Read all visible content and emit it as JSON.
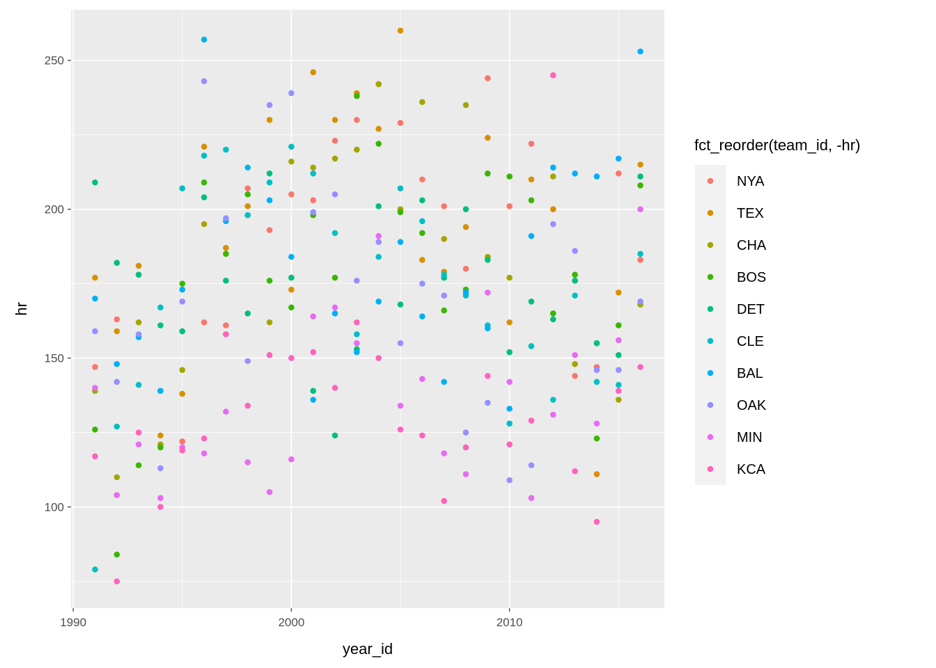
{
  "chart_data": {
    "type": "scatter",
    "xlabel": "year_id",
    "ylabel": "hr",
    "xlim": [
      1989.9,
      2017.1
    ],
    "ylim": [
      66,
      267
    ],
    "x_ticks": [
      1990,
      2000,
      2010
    ],
    "y_ticks": [
      100,
      150,
      200,
      250
    ],
    "grid": true,
    "legend": {
      "title": "fct_reorder(team_id, -hr)",
      "position": "right"
    },
    "series": [
      {
        "name": "NYA",
        "color": "#F8766D",
        "points": [
          [
            1991,
            147
          ],
          [
            1992,
            163
          ],
          [
            1993,
            178
          ],
          [
            1994,
            139
          ],
          [
            1995,
            122
          ],
          [
            1996,
            162
          ],
          [
            1997,
            161
          ],
          [
            1998,
            207
          ],
          [
            1999,
            193
          ],
          [
            2000,
            205
          ],
          [
            2001,
            203
          ],
          [
            2002,
            223
          ],
          [
            2003,
            230
          ],
          [
            2004,
            242
          ],
          [
            2005,
            229
          ],
          [
            2006,
            210
          ],
          [
            2007,
            201
          ],
          [
            2008,
            180
          ],
          [
            2009,
            244
          ],
          [
            2010,
            201
          ],
          [
            2011,
            222
          ],
          [
            2012,
            245
          ],
          [
            2013,
            144
          ],
          [
            2014,
            147
          ],
          [
            2015,
            212
          ],
          [
            2016,
            183
          ]
        ]
      },
      {
        "name": "TEX",
        "color": "#D89000",
        "points": [
          [
            1991,
            177
          ],
          [
            1992,
            159
          ],
          [
            1993,
            181
          ],
          [
            1994,
            124
          ],
          [
            1995,
            138
          ],
          [
            1996,
            221
          ],
          [
            1997,
            187
          ],
          [
            1998,
            201
          ],
          [
            1999,
            230
          ],
          [
            2000,
            173
          ],
          [
            2001,
            246
          ],
          [
            2002,
            230
          ],
          [
            2003,
            239
          ],
          [
            2004,
            227
          ],
          [
            2005,
            260
          ],
          [
            2006,
            183
          ],
          [
            2007,
            179
          ],
          [
            2008,
            194
          ],
          [
            2009,
            224
          ],
          [
            2010,
            162
          ],
          [
            2011,
            210
          ],
          [
            2012,
            200
          ],
          [
            2013,
            176
          ],
          [
            2014,
            111
          ],
          [
            2015,
            172
          ],
          [
            2016,
            215
          ]
        ]
      },
      {
        "name": "CHA",
        "color": "#A3A500",
        "points": [
          [
            1991,
            139
          ],
          [
            1992,
            110
          ],
          [
            1993,
            162
          ],
          [
            1994,
            121
          ],
          [
            1995,
            146
          ],
          [
            1996,
            195
          ],
          [
            1997,
            158
          ],
          [
            1998,
            198
          ],
          [
            1999,
            162
          ],
          [
            2000,
            216
          ],
          [
            2001,
            214
          ],
          [
            2002,
            217
          ],
          [
            2003,
            220
          ],
          [
            2004,
            242
          ],
          [
            2005,
            200
          ],
          [
            2006,
            236
          ],
          [
            2007,
            190
          ],
          [
            2008,
            235
          ],
          [
            2009,
            184
          ],
          [
            2010,
            177
          ],
          [
            2011,
            154
          ],
          [
            2012,
            211
          ],
          [
            2013,
            148
          ],
          [
            2014,
            155
          ],
          [
            2015,
            136
          ],
          [
            2016,
            168
          ]
        ]
      },
      {
        "name": "BOS",
        "color": "#39B600",
        "points": [
          [
            1991,
            126
          ],
          [
            1992,
            84
          ],
          [
            1993,
            114
          ],
          [
            1994,
            120
          ],
          [
            1995,
            175
          ],
          [
            1996,
            209
          ],
          [
            1997,
            185
          ],
          [
            1998,
            205
          ],
          [
            1999,
            176
          ],
          [
            2000,
            167
          ],
          [
            2001,
            198
          ],
          [
            2002,
            177
          ],
          [
            2003,
            238
          ],
          [
            2004,
            222
          ],
          [
            2005,
            199
          ],
          [
            2006,
            192
          ],
          [
            2007,
            166
          ],
          [
            2008,
            173
          ],
          [
            2009,
            212
          ],
          [
            2010,
            211
          ],
          [
            2011,
            203
          ],
          [
            2012,
            165
          ],
          [
            2013,
            178
          ],
          [
            2014,
            123
          ],
          [
            2015,
            161
          ],
          [
            2016,
            208
          ]
        ]
      },
      {
        "name": "DET",
        "color": "#00BF7D",
        "points": [
          [
            1991,
            209
          ],
          [
            1992,
            182
          ],
          [
            1993,
            178
          ],
          [
            1994,
            161
          ],
          [
            1995,
            159
          ],
          [
            1996,
            204
          ],
          [
            1997,
            176
          ],
          [
            1998,
            165
          ],
          [
            1999,
            212
          ],
          [
            2000,
            177
          ],
          [
            2001,
            139
          ],
          [
            2002,
            124
          ],
          [
            2003,
            153
          ],
          [
            2004,
            201
          ],
          [
            2005,
            168
          ],
          [
            2006,
            203
          ],
          [
            2007,
            177
          ],
          [
            2008,
            200
          ],
          [
            2009,
            183
          ],
          [
            2010,
            152
          ],
          [
            2011,
            169
          ],
          [
            2012,
            163
          ],
          [
            2013,
            176
          ],
          [
            2014,
            155
          ],
          [
            2015,
            151
          ],
          [
            2016,
            211
          ]
        ]
      },
      {
        "name": "CLE",
        "color": "#00BFC4",
        "points": [
          [
            1991,
            79
          ],
          [
            1992,
            127
          ],
          [
            1993,
            141
          ],
          [
            1994,
            167
          ],
          [
            1995,
            207
          ],
          [
            1996,
            218
          ],
          [
            1997,
            220
          ],
          [
            1998,
            198
          ],
          [
            1999,
            209
          ],
          [
            2000,
            221
          ],
          [
            2001,
            212
          ],
          [
            2002,
            192
          ],
          [
            2003,
            158
          ],
          [
            2004,
            184
          ],
          [
            2005,
            207
          ],
          [
            2006,
            196
          ],
          [
            2007,
            178
          ],
          [
            2008,
            171
          ],
          [
            2009,
            161
          ],
          [
            2010,
            128
          ],
          [
            2011,
            154
          ],
          [
            2012,
            136
          ],
          [
            2013,
            171
          ],
          [
            2014,
            142
          ],
          [
            2015,
            141
          ],
          [
            2016,
            185
          ]
        ]
      },
      {
        "name": "BAL",
        "color": "#00B0F6",
        "points": [
          [
            1991,
            170
          ],
          [
            1992,
            148
          ],
          [
            1993,
            157
          ],
          [
            1994,
            139
          ],
          [
            1995,
            173
          ],
          [
            1996,
            257
          ],
          [
            1997,
            196
          ],
          [
            1998,
            214
          ],
          [
            1999,
            203
          ],
          [
            2000,
            184
          ],
          [
            2001,
            136
          ],
          [
            2002,
            165
          ],
          [
            2003,
            152
          ],
          [
            2004,
            169
          ],
          [
            2005,
            189
          ],
          [
            2006,
            164
          ],
          [
            2007,
            142
          ],
          [
            2008,
            172
          ],
          [
            2009,
            160
          ],
          [
            2010,
            133
          ],
          [
            2011,
            191
          ],
          [
            2012,
            214
          ],
          [
            2013,
            212
          ],
          [
            2014,
            211
          ],
          [
            2015,
            217
          ],
          [
            2016,
            253
          ]
        ]
      },
      {
        "name": "OAK",
        "color": "#9590FF",
        "points": [
          [
            1991,
            159
          ],
          [
            1992,
            142
          ],
          [
            1993,
            158
          ],
          [
            1994,
            113
          ],
          [
            1995,
            169
          ],
          [
            1996,
            243
          ],
          [
            1997,
            197
          ],
          [
            1998,
            149
          ],
          [
            1999,
            235
          ],
          [
            2000,
            239
          ],
          [
            2001,
            199
          ],
          [
            2002,
            205
          ],
          [
            2003,
            176
          ],
          [
            2004,
            189
          ],
          [
            2005,
            155
          ],
          [
            2006,
            175
          ],
          [
            2007,
            171
          ],
          [
            2008,
            125
          ],
          [
            2009,
            135
          ],
          [
            2010,
            109
          ],
          [
            2011,
            114
          ],
          [
            2012,
            195
          ],
          [
            2013,
            186
          ],
          [
            2014,
            146
          ],
          [
            2015,
            146
          ],
          [
            2016,
            169
          ]
        ]
      },
      {
        "name": "MIN",
        "color": "#E76BF3",
        "points": [
          [
            1991,
            140
          ],
          [
            1992,
            104
          ],
          [
            1993,
            121
          ],
          [
            1994,
            103
          ],
          [
            1995,
            120
          ],
          [
            1996,
            118
          ],
          [
            1997,
            132
          ],
          [
            1998,
            115
          ],
          [
            1999,
            105
          ],
          [
            2000,
            116
          ],
          [
            2001,
            164
          ],
          [
            2002,
            167
          ],
          [
            2003,
            155
          ],
          [
            2004,
            191
          ],
          [
            2005,
            134
          ],
          [
            2006,
            143
          ],
          [
            2007,
            118
          ],
          [
            2008,
            111
          ],
          [
            2009,
            172
          ],
          [
            2010,
            142
          ],
          [
            2011,
            103
          ],
          [
            2012,
            131
          ],
          [
            2013,
            151
          ],
          [
            2014,
            128
          ],
          [
            2015,
            156
          ],
          [
            2016,
            200
          ]
        ]
      },
      {
        "name": "KCA",
        "color": "#FF62BC",
        "points": [
          [
            1991,
            117
          ],
          [
            1992,
            75
          ],
          [
            1993,
            125
          ],
          [
            1994,
            100
          ],
          [
            1995,
            119
          ],
          [
            1996,
            123
          ],
          [
            1997,
            158
          ],
          [
            1998,
            134
          ],
          [
            1999,
            151
          ],
          [
            2000,
            150
          ],
          [
            2001,
            152
          ],
          [
            2002,
            140
          ],
          [
            2003,
            162
          ],
          [
            2004,
            150
          ],
          [
            2005,
            126
          ],
          [
            2006,
            124
          ],
          [
            2007,
            102
          ],
          [
            2008,
            120
          ],
          [
            2009,
            144
          ],
          [
            2010,
            121
          ],
          [
            2011,
            129
          ],
          [
            2012,
            245
          ],
          [
            2013,
            112
          ],
          [
            2014,
            95
          ],
          [
            2015,
            139
          ],
          [
            2016,
            147
          ]
        ]
      }
    ]
  }
}
